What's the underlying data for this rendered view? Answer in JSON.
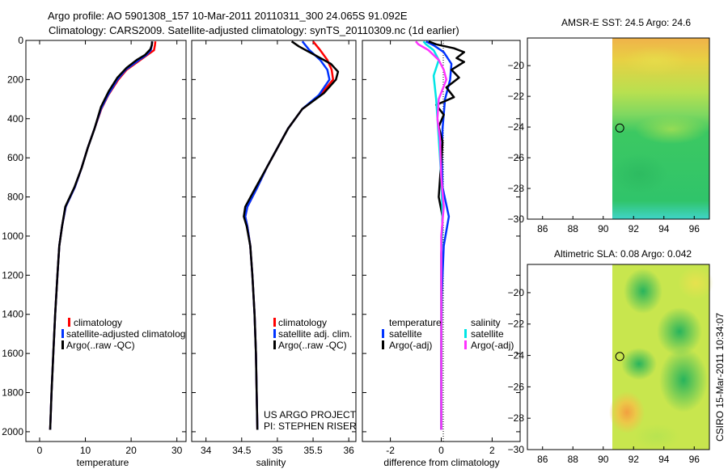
{
  "title": {
    "line1": "Argo profile: AO 5901308_157 10-Mar-2011 20110311_300 24.065S 91.092E",
    "line2": "Climatology: CARS2009. Satellite-adjusted climatology: synTS_20110309.nc (1d earlier)"
  },
  "side_label": "CSIRO 15-Mar-2011 10:34:07",
  "colors": {
    "red": "#ff0000",
    "blue": "#0033ff",
    "black": "#000000",
    "cyan": "#00e5e5",
    "magenta": "#ff33ff"
  },
  "chart_data": [
    {
      "type": "line",
      "name": "temperature",
      "xlabel": "temperature",
      "ylabel": "",
      "xlim": [
        -3,
        32
      ],
      "ylim": [
        2050,
        0
      ],
      "xticks": [
        0,
        10,
        20,
        30
      ],
      "yticks": [
        0,
        200,
        400,
        600,
        800,
        1000,
        1200,
        1400,
        1600,
        1800,
        2000
      ],
      "legend": {
        "location": "center-right",
        "items": [
          "climatology",
          "satellite-adjusted climatolog",
          "Argo(..raw -QC)"
        ]
      },
      "series": [
        {
          "name": "climatology",
          "color": "#ff0000",
          "points": [
            [
              25.3,
              5
            ],
            [
              25.2,
              25
            ],
            [
              25.0,
              50
            ],
            [
              23.5,
              75
            ],
            [
              22.0,
              100
            ],
            [
              19.0,
              150
            ],
            [
              17.2,
              200
            ],
            [
              15.0,
              280
            ],
            [
              13.5,
              350
            ],
            [
              12.0,
              450
            ],
            [
              10.5,
              550
            ],
            [
              9.2,
              650
            ],
            [
              7.7,
              750
            ],
            [
              5.7,
              850
            ],
            [
              4.9,
              950
            ],
            [
              4.3,
              1050
            ],
            [
              3.9,
              1200
            ],
            [
              3.4,
              1400
            ],
            [
              3.0,
              1600
            ],
            [
              2.6,
              1800
            ],
            [
              2.3,
              1990
            ]
          ]
        },
        {
          "name": "satellite-adjusted climatology",
          "color": "#0033ff",
          "points": [
            [
              24.6,
              5
            ],
            [
              24.5,
              25
            ],
            [
              24.3,
              50
            ],
            [
              23.3,
              75
            ],
            [
              21.7,
              100
            ],
            [
              18.8,
              150
            ],
            [
              17.0,
              200
            ],
            [
              14.9,
              280
            ],
            [
              13.4,
              350
            ],
            [
              12.0,
              450
            ],
            [
              10.5,
              550
            ],
            [
              9.2,
              650
            ],
            [
              7.7,
              750
            ],
            [
              5.7,
              850
            ],
            [
              4.9,
              950
            ],
            [
              4.3,
              1050
            ],
            [
              3.9,
              1200
            ],
            [
              3.4,
              1400
            ],
            [
              3.0,
              1600
            ],
            [
              2.6,
              1800
            ],
            [
              2.3,
              1990
            ]
          ]
        },
        {
          "name": "Argo(..raw -QC)",
          "color": "#000000",
          "points": [
            [
              24.6,
              5
            ],
            [
              24.5,
              25
            ],
            [
              24.2,
              45
            ],
            [
              23.0,
              75
            ],
            [
              21.2,
              100
            ],
            [
              19.0,
              140
            ],
            [
              17.0,
              190
            ],
            [
              15.1,
              260
            ],
            [
              13.4,
              340
            ],
            [
              12.0,
              450
            ],
            [
              10.5,
              550
            ],
            [
              9.2,
              650
            ],
            [
              7.6,
              750
            ],
            [
              5.6,
              850
            ],
            [
              4.9,
              950
            ],
            [
              4.3,
              1050
            ],
            [
              3.9,
              1200
            ],
            [
              3.4,
              1400
            ],
            [
              3.0,
              1600
            ],
            [
              2.6,
              1800
            ],
            [
              2.3,
              1990
            ]
          ]
        }
      ]
    },
    {
      "type": "line",
      "name": "salinity",
      "xlabel": "salinity",
      "ylabel": "",
      "xlim": [
        33.8,
        36.1
      ],
      "ylim": [
        2050,
        0
      ],
      "xticks": [
        34,
        34.5,
        35,
        35.5,
        36
      ],
      "yticks": [
        0,
        200,
        400,
        600,
        800,
        1000,
        1200,
        1400,
        1600,
        1800,
        2000
      ],
      "legend": {
        "location": "center-right",
        "items": [
          "climatology",
          "satellite adj. clim.",
          "Argo(..raw -QC)"
        ]
      },
      "annotation": [
        "US ARGO PROJECT",
        "PI: STEPHEN RISER"
      ],
      "series": [
        {
          "name": "climatology",
          "color": "#ff0000",
          "points": [
            [
              35.5,
              5
            ],
            [
              35.6,
              50
            ],
            [
              35.7,
              100
            ],
            [
              35.76,
              150
            ],
            [
              35.78,
              200
            ],
            [
              35.6,
              280
            ],
            [
              35.35,
              350
            ],
            [
              35.15,
              450
            ],
            [
              35.0,
              550
            ],
            [
              34.85,
              650
            ],
            [
              34.72,
              750
            ],
            [
              34.58,
              850
            ],
            [
              34.55,
              900
            ],
            [
              34.58,
              950
            ],
            [
              34.62,
              1050
            ],
            [
              34.65,
              1200
            ],
            [
              34.68,
              1400
            ],
            [
              34.7,
              1600
            ],
            [
              34.71,
              1800
            ],
            [
              34.72,
              1990
            ]
          ]
        },
        {
          "name": "satellite adj. clim.",
          "color": "#0033ff",
          "points": [
            [
              35.35,
              5
            ],
            [
              35.45,
              50
            ],
            [
              35.6,
              100
            ],
            [
              35.7,
              150
            ],
            [
              35.73,
              200
            ],
            [
              35.58,
              280
            ],
            [
              35.35,
              350
            ],
            [
              35.15,
              450
            ],
            [
              35.0,
              550
            ],
            [
              34.85,
              650
            ],
            [
              34.72,
              750
            ],
            [
              34.58,
              850
            ],
            [
              34.55,
              900
            ],
            [
              34.58,
              950
            ],
            [
              34.62,
              1050
            ],
            [
              34.65,
              1200
            ],
            [
              34.68,
              1400
            ],
            [
              34.7,
              1600
            ],
            [
              34.71,
              1800
            ],
            [
              34.72,
              1990
            ]
          ]
        },
        {
          "name": "Argo(..raw -QC)",
          "color": "#000000",
          "points": [
            [
              35.2,
              5
            ],
            [
              35.3,
              30
            ],
            [
              35.5,
              70
            ],
            [
              35.75,
              120
            ],
            [
              35.85,
              160
            ],
            [
              35.82,
              200
            ],
            [
              35.65,
              270
            ],
            [
              35.35,
              350
            ],
            [
              35.15,
              450
            ],
            [
              35.0,
              550
            ],
            [
              34.85,
              650
            ],
            [
              34.7,
              750
            ],
            [
              34.55,
              850
            ],
            [
              34.53,
              900
            ],
            [
              34.57,
              950
            ],
            [
              34.62,
              1050
            ],
            [
              34.65,
              1200
            ],
            [
              34.68,
              1400
            ],
            [
              34.7,
              1600
            ],
            [
              34.71,
              1800
            ],
            [
              34.72,
              1990
            ]
          ]
        }
      ]
    },
    {
      "type": "line",
      "name": "difference",
      "xlabel": "difference from climatology",
      "ylabel": "",
      "xlim": [
        -3.1,
        3.1
      ],
      "ylim": [
        2050,
        0
      ],
      "xticks": [
        -2,
        0,
        2
      ],
      "yticks": [
        0,
        200,
        400,
        600,
        800,
        1000,
        1200,
        1400,
        1600,
        1800,
        2000
      ],
      "legend": {
        "location": "center",
        "col1_title": "temperature",
        "col2_title": "salinity",
        "items": [
          "satellite",
          "Argo(-adj)",
          "satellite",
          "Argo(-adj)"
        ]
      },
      "series": [
        {
          "name": "temperature satellite",
          "color": "#0033ff",
          "points": [
            [
              -0.6,
              5
            ],
            [
              -0.3,
              25
            ],
            [
              0.1,
              60
            ],
            [
              0.4,
              120
            ],
            [
              0.35,
              200
            ],
            [
              0.15,
              300
            ],
            [
              0.05,
              450
            ],
            [
              0.02,
              600
            ],
            [
              0.05,
              750
            ],
            [
              0.3,
              900
            ],
            [
              0.1,
              1050
            ],
            [
              0.02,
              1300
            ],
            [
              0,
              1600
            ],
            [
              0,
              1800
            ],
            [
              0,
              1990
            ]
          ]
        },
        {
          "name": "temperature Argo(-adj)",
          "color": "#000000",
          "points": [
            [
              -0.5,
              5
            ],
            [
              -0.2,
              20
            ],
            [
              0.5,
              40
            ],
            [
              0.9,
              60
            ],
            [
              0.6,
              90
            ],
            [
              0.9,
              110
            ],
            [
              0.4,
              150
            ],
            [
              0.7,
              190
            ],
            [
              0.2,
              240
            ],
            [
              0.5,
              290
            ],
            [
              -0.2,
              330
            ],
            [
              0.1,
              380
            ],
            [
              -0.1,
              440
            ],
            [
              0.05,
              520
            ],
            [
              -0.1,
              800
            ],
            [
              0.05,
              900
            ],
            [
              0,
              1100
            ],
            [
              0,
              1400
            ],
            [
              0,
              1700
            ],
            [
              0,
              1990
            ]
          ]
        },
        {
          "name": "salinity satellite",
          "color": "#00e5e5",
          "points": [
            [
              -0.7,
              5
            ],
            [
              -0.6,
              20
            ],
            [
              -0.3,
              50
            ],
            [
              -0.1,
              100
            ],
            [
              -0.3,
              180
            ],
            [
              -0.2,
              300
            ],
            [
              -0.1,
              500
            ],
            [
              0,
              700
            ],
            [
              0.05,
              900
            ],
            [
              0,
              1100
            ],
            [
              0,
              1400
            ],
            [
              0,
              1700
            ],
            [
              0,
              1990
            ]
          ]
        },
        {
          "name": "salinity Argo(-adj)",
          "color": "#ff33ff",
          "points": [
            [
              -1.0,
              5
            ],
            [
              -0.9,
              20
            ],
            [
              -0.5,
              50
            ],
            [
              -0.1,
              100
            ],
            [
              0.1,
              150
            ],
            [
              0.2,
              200
            ],
            [
              -0.1,
              300
            ],
            [
              -0.15,
              400
            ],
            [
              -0.05,
              500
            ],
            [
              0,
              700
            ],
            [
              0.1,
              850
            ],
            [
              0,
              1000
            ],
            [
              0,
              1200
            ],
            [
              0,
              1500
            ],
            [
              0,
              1800
            ],
            [
              0,
              1990
            ]
          ]
        }
      ]
    },
    {
      "type": "heatmap",
      "name": "sst-map",
      "title": "AMSR-E SST: 24.5 Argo: 24.6",
      "xlim": [
        85,
        97
      ],
      "ylim": [
        -30,
        -18.2
      ],
      "xticks": [
        86,
        88,
        90,
        92,
        94,
        96
      ],
      "yticks": [
        -20,
        -22,
        -24,
        -26,
        -28,
        -30
      ],
      "data_region_x": [
        90,
        97
      ],
      "marker": {
        "lon": 91.092,
        "lat": -24.065
      }
    },
    {
      "type": "heatmap",
      "name": "sla-map",
      "title": "Altimetric SLA: 0.08 Argo: 0.042",
      "xlim": [
        85,
        97
      ],
      "ylim": [
        -30,
        -18.2
      ],
      "xticks": [
        86,
        88,
        90,
        92,
        94,
        96
      ],
      "yticks": [
        -20,
        -22,
        -24,
        -26,
        -28,
        -30
      ],
      "data_region_x": [
        90,
        97
      ],
      "marker": {
        "lon": 91.092,
        "lat": -24.065
      }
    }
  ]
}
